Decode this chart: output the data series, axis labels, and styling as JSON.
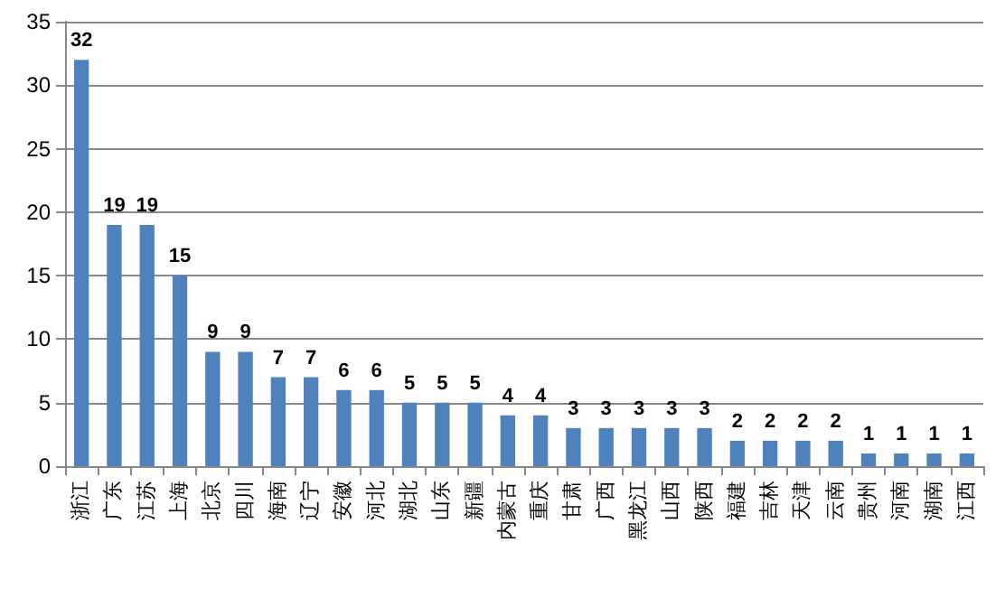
{
  "chart_data": {
    "type": "bar",
    "categories": [
      "浙江",
      "广东",
      "江苏",
      "上海",
      "北京",
      "四川",
      "海南",
      "辽宁",
      "安徽",
      "河北",
      "湖北",
      "山东",
      "新疆",
      "内蒙古",
      "重庆",
      "甘肃",
      "广西",
      "黑龙江",
      "山西",
      "陕西",
      "福建",
      "吉林",
      "天津",
      "云南",
      "贵州",
      "河南",
      "湖南",
      "江西"
    ],
    "values": [
      32,
      19,
      19,
      15,
      9,
      9,
      7,
      7,
      6,
      6,
      5,
      5,
      5,
      4,
      4,
      3,
      3,
      3,
      3,
      3,
      2,
      2,
      2,
      2,
      1,
      1,
      1,
      1
    ],
    "color": "#4f81bd",
    "ylim": [
      0,
      35
    ],
    "yticks": [
      0,
      5,
      10,
      15,
      20,
      25,
      30,
      35
    ],
    "grid": "y",
    "data_labels": true
  }
}
